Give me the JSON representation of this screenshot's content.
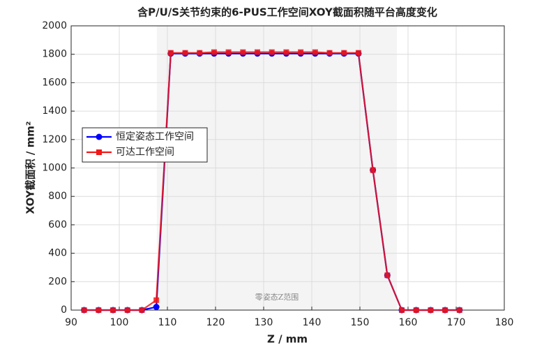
{
  "chart_data": {
    "type": "line",
    "title": "含P/U/S关节约束的6-PUS工作空间XOY截面积随平台高度变化",
    "x_label": "Z / mm",
    "y_label": "XOY截面积 / mm²",
    "x": [
      92.7,
      95.7,
      98.7,
      101.7,
      104.7,
      107.7,
      110.7,
      113.7,
      116.7,
      119.7,
      122.7,
      125.7,
      128.7,
      131.7,
      134.7,
      137.7,
      140.7,
      143.7,
      146.7,
      149.7,
      152.7,
      155.7,
      158.7,
      161.7,
      164.7,
      167.7,
      170.7
    ],
    "series": [
      {
        "name": "恒定姿态工作空间",
        "color": "#0000ff",
        "marker": "circle",
        "values": [
          0,
          0,
          0,
          0,
          0,
          22,
          1805,
          1805,
          1805,
          1805,
          1805,
          1805,
          1805,
          1805,
          1805,
          1805,
          1805,
          1805,
          1805,
          1805,
          985,
          245,
          0,
          0,
          0,
          0,
          0
        ]
      },
      {
        "name": "可达工作空间",
        "color": "#f01818",
        "marker": "square",
        "values": [
          0,
          0,
          0,
          0,
          0,
          70,
          1810,
          1810,
          1810,
          1815,
          1815,
          1815,
          1815,
          1815,
          1815,
          1815,
          1815,
          1810,
          1810,
          1810,
          985,
          245,
          0,
          0,
          0,
          0,
          0
        ]
      }
    ],
    "shade": {
      "range": [
        107.8,
        157.7
      ],
      "label": "零姿态Z范围"
    },
    "xlim": [
      90,
      180
    ],
    "xticks": [
      90,
      100,
      110,
      120,
      130,
      140,
      150,
      160,
      170,
      180
    ],
    "ylim": [
      0,
      2000
    ],
    "yticks": [
      0,
      200,
      400,
      600,
      800,
      1000,
      1200,
      1400,
      1600,
      1800,
      2000
    ],
    "grid": true,
    "legend": "west"
  }
}
